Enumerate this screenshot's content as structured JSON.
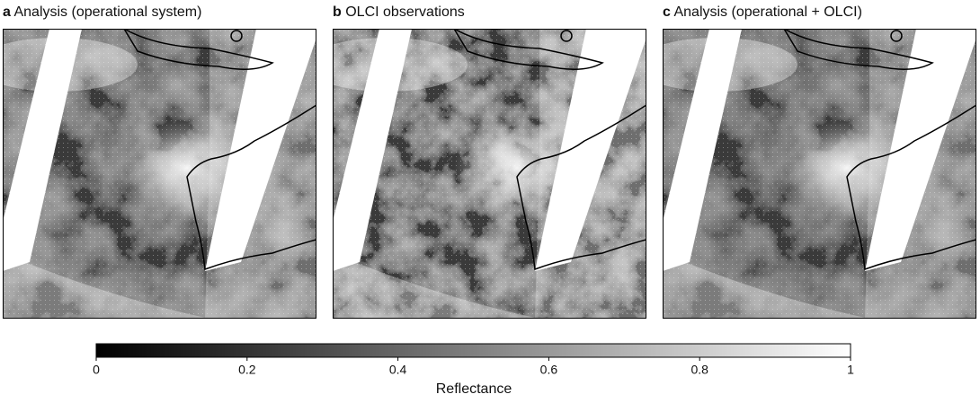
{
  "panels": [
    {
      "letter": "a",
      "title": "Analysis (operational system)"
    },
    {
      "letter": "b",
      "title": "OLCI observations"
    },
    {
      "letter": "c",
      "title": "Analysis (operational + OLCI)"
    }
  ],
  "colorbar": {
    "label": "Reflectance",
    "lim": [
      0,
      1
    ],
    "ticks": [
      0,
      0.2,
      0.4,
      0.6,
      0.8,
      1
    ]
  }
}
